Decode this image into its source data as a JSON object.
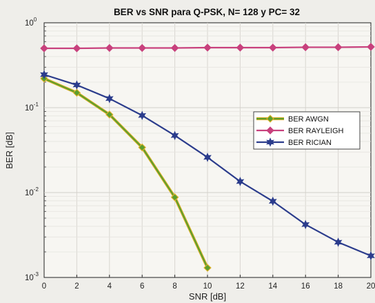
{
  "chart_data": {
    "type": "line",
    "title": "BER vs SNR para Q-PSK, N= 128 y PC= 32",
    "xlabel": "SNR [dB]",
    "ylabel": "BER [dB]",
    "xlim": [
      0,
      20
    ],
    "ylim": [
      0.001,
      1
    ],
    "y_scale": "log",
    "grid": true,
    "legend_position": "right",
    "x_ticks": [
      "0",
      "2",
      "4",
      "6",
      "8",
      "10",
      "12",
      "14",
      "16",
      "18",
      "20"
    ],
    "y_ticks": [
      {
        "base": "10",
        "exp": "0"
      },
      {
        "base": "10",
        "exp": "-1"
      },
      {
        "base": "10",
        "exp": "-2"
      },
      {
        "base": "10",
        "exp": "-3"
      }
    ],
    "series": [
      {
        "name": "BER AWGN",
        "color": "#5c9e2e",
        "edge_color": "#e2b12a",
        "marker": "diamond",
        "x": [
          0,
          2,
          4,
          6,
          8,
          10
        ],
        "values": [
          0.22,
          0.15,
          0.083,
          0.034,
          0.0088,
          0.0013
        ]
      },
      {
        "name": "BER RAYLEIGH",
        "color": "#c8417d",
        "marker": "diamond",
        "x": [
          0,
          2,
          4,
          6,
          8,
          10,
          12,
          14,
          16,
          18,
          20
        ],
        "values": [
          0.5,
          0.5,
          0.505,
          0.505,
          0.505,
          0.51,
          0.51,
          0.51,
          0.515,
          0.515,
          0.52
        ]
      },
      {
        "name": "BER RICIAN",
        "color": "#2b3c8c",
        "marker": "star",
        "x": [
          0,
          2,
          4,
          6,
          8,
          10,
          12,
          14,
          16,
          18,
          20
        ],
        "values": [
          0.245,
          0.185,
          0.128,
          0.081,
          0.047,
          0.026,
          0.0135,
          0.0079,
          0.0042,
          0.0026,
          0.0018
        ]
      }
    ]
  }
}
